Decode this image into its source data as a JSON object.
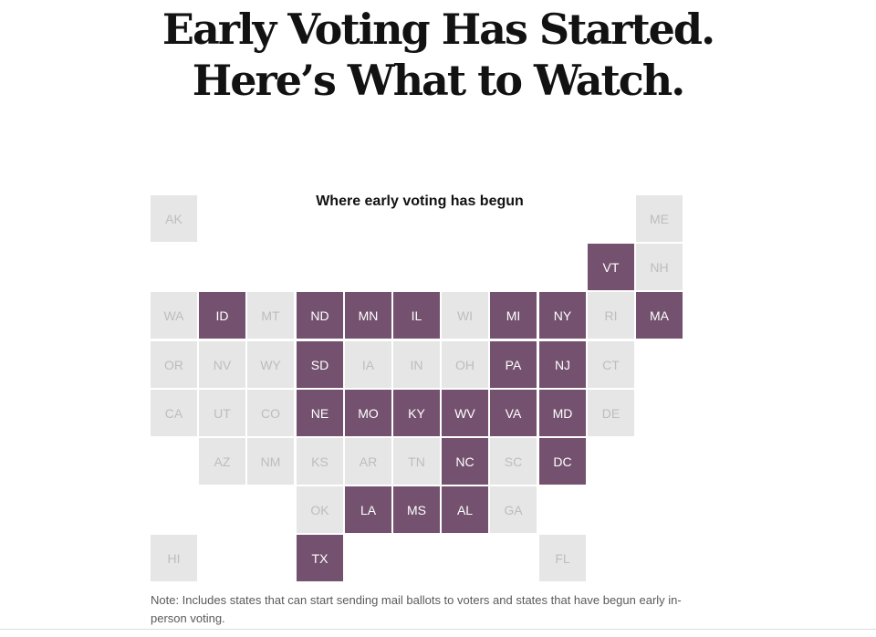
{
  "headline": {
    "line1": "Early Voting Has Started.",
    "line2": "Here’s What to Watch."
  },
  "map": {
    "title": "Where early voting has begun",
    "colors": {
      "begun": "#74526f",
      "not_begun": "#e6e6e6"
    },
    "states": [
      {
        "abbr": "AK",
        "row": 0,
        "col": 0,
        "begun": false
      },
      {
        "abbr": "ME",
        "row": 0,
        "col": 10,
        "begun": false
      },
      {
        "abbr": "VT",
        "row": 1,
        "col": 9,
        "begun": true
      },
      {
        "abbr": "NH",
        "row": 1,
        "col": 10,
        "begun": false
      },
      {
        "abbr": "WA",
        "row": 2,
        "col": 0,
        "begun": false
      },
      {
        "abbr": "ID",
        "row": 2,
        "col": 1,
        "begun": true
      },
      {
        "abbr": "MT",
        "row": 2,
        "col": 2,
        "begun": false
      },
      {
        "abbr": "ND",
        "row": 2,
        "col": 3,
        "begun": true
      },
      {
        "abbr": "MN",
        "row": 2,
        "col": 4,
        "begun": true
      },
      {
        "abbr": "IL",
        "row": 2,
        "col": 5,
        "begun": true
      },
      {
        "abbr": "WI",
        "row": 2,
        "col": 6,
        "begun": false
      },
      {
        "abbr": "MI",
        "row": 2,
        "col": 7,
        "begun": true
      },
      {
        "abbr": "NY",
        "row": 2,
        "col": 8,
        "begun": true
      },
      {
        "abbr": "RI",
        "row": 2,
        "col": 9,
        "begun": false
      },
      {
        "abbr": "MA",
        "row": 2,
        "col": 10,
        "begun": true
      },
      {
        "abbr": "OR",
        "row": 3,
        "col": 0,
        "begun": false
      },
      {
        "abbr": "NV",
        "row": 3,
        "col": 1,
        "begun": false
      },
      {
        "abbr": "WY",
        "row": 3,
        "col": 2,
        "begun": false
      },
      {
        "abbr": "SD",
        "row": 3,
        "col": 3,
        "begun": true
      },
      {
        "abbr": "IA",
        "row": 3,
        "col": 4,
        "begun": false
      },
      {
        "abbr": "IN",
        "row": 3,
        "col": 5,
        "begun": false
      },
      {
        "abbr": "OH",
        "row": 3,
        "col": 6,
        "begun": false
      },
      {
        "abbr": "PA",
        "row": 3,
        "col": 7,
        "begun": true
      },
      {
        "abbr": "NJ",
        "row": 3,
        "col": 8,
        "begun": true
      },
      {
        "abbr": "CT",
        "row": 3,
        "col": 9,
        "begun": false
      },
      {
        "abbr": "CA",
        "row": 4,
        "col": 0,
        "begun": false
      },
      {
        "abbr": "UT",
        "row": 4,
        "col": 1,
        "begun": false
      },
      {
        "abbr": "CO",
        "row": 4,
        "col": 2,
        "begun": false
      },
      {
        "abbr": "NE",
        "row": 4,
        "col": 3,
        "begun": true
      },
      {
        "abbr": "MO",
        "row": 4,
        "col": 4,
        "begun": true
      },
      {
        "abbr": "KY",
        "row": 4,
        "col": 5,
        "begun": true
      },
      {
        "abbr": "WV",
        "row": 4,
        "col": 6,
        "begun": true
      },
      {
        "abbr": "VA",
        "row": 4,
        "col": 7,
        "begun": true
      },
      {
        "abbr": "MD",
        "row": 4,
        "col": 8,
        "begun": true
      },
      {
        "abbr": "DE",
        "row": 4,
        "col": 9,
        "begun": false
      },
      {
        "abbr": "AZ",
        "row": 5,
        "col": 1,
        "begun": false
      },
      {
        "abbr": "NM",
        "row": 5,
        "col": 2,
        "begun": false
      },
      {
        "abbr": "KS",
        "row": 5,
        "col": 3,
        "begun": false
      },
      {
        "abbr": "AR",
        "row": 5,
        "col": 4,
        "begun": false
      },
      {
        "abbr": "TN",
        "row": 5,
        "col": 5,
        "begun": false
      },
      {
        "abbr": "NC",
        "row": 5,
        "col": 6,
        "begun": true
      },
      {
        "abbr": "SC",
        "row": 5,
        "col": 7,
        "begun": false
      },
      {
        "abbr": "DC",
        "row": 5,
        "col": 8,
        "begun": true
      },
      {
        "abbr": "OK",
        "row": 6,
        "col": 3,
        "begun": false
      },
      {
        "abbr": "LA",
        "row": 6,
        "col": 4,
        "begun": true
      },
      {
        "abbr": "MS",
        "row": 6,
        "col": 5,
        "begun": true
      },
      {
        "abbr": "AL",
        "row": 6,
        "col": 6,
        "begun": true
      },
      {
        "abbr": "GA",
        "row": 6,
        "col": 7,
        "begun": false
      },
      {
        "abbr": "HI",
        "row": 7,
        "col": 0,
        "begun": false
      },
      {
        "abbr": "TX",
        "row": 7,
        "col": 3,
        "begun": true
      },
      {
        "abbr": "FL",
        "row": 7,
        "col": 8,
        "begun": false
      }
    ]
  },
  "note": "Note: Includes states that can start sending mail ballots to voters and states that have begun early in-person voting."
}
